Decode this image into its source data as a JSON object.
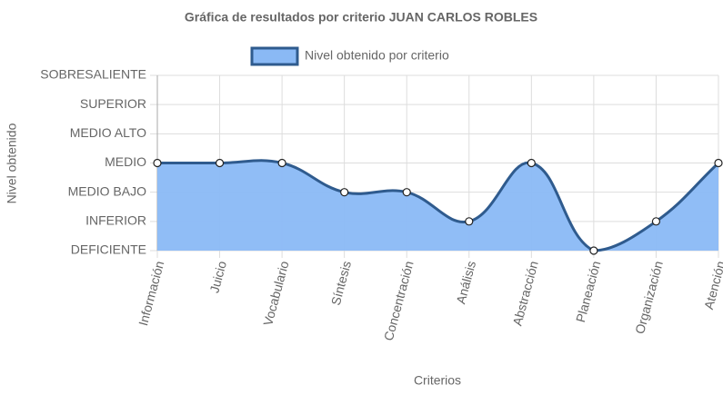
{
  "chart_data": {
    "type": "line",
    "title": "Gráfica de resultados por criterio JUAN CARLOS ROBLES",
    "x_label": "Criterios",
    "y_label": "Nivel obtenido",
    "categories": [
      "Información",
      "Juicio",
      "Vocabulario",
      "Síntesis",
      "Concentración",
      "Análisis",
      "Abstracción",
      "Planeación",
      "Organización",
      "Atención"
    ],
    "series": [
      {
        "name": "Nivel obtenido por criterio",
        "color": "#2f5b8e",
        "fill_color": "#8ab9f5",
        "values": [
          3,
          3,
          3,
          2,
          2,
          1,
          3,
          0,
          1,
          3
        ]
      }
    ],
    "ylim": [
      0,
      6
    ],
    "yticks": [
      {
        "value": 0,
        "label": "DEFICIENTE"
      },
      {
        "value": 1,
        "label": "INFERIOR"
      },
      {
        "value": 2,
        "label": "MEDIO BAJO"
      },
      {
        "value": 3,
        "label": "MEDIO"
      },
      {
        "value": 4,
        "label": "MEDIO ALTO"
      },
      {
        "value": 5,
        "label": "SUPERIOR"
      },
      {
        "value": 6,
        "label": "SOBRESALIENTE"
      }
    ],
    "grid": true,
    "legend": "top"
  }
}
